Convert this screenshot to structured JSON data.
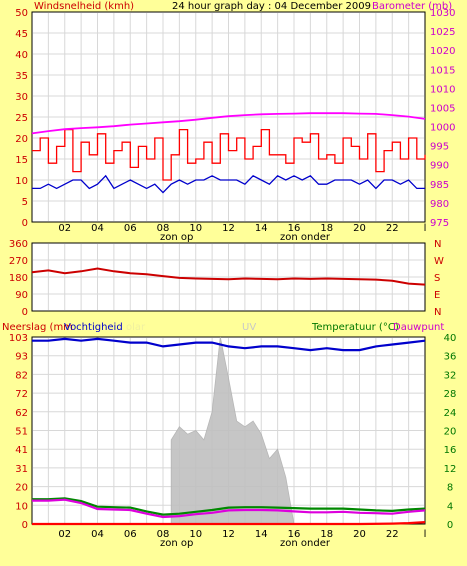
{
  "colors": {
    "page_bg": "#ffff99",
    "plot_bg": "#ffffff",
    "grid": "#d8d8d8",
    "wind_label": "#cc0000",
    "baro_label": "#cc00cc",
    "rain_label": "#cc0000",
    "humidity_label": "#0000cc",
    "solar_label": "#f0f0a0",
    "uv_label": "#d0d0d0",
    "temp_label": "#007700",
    "dew_label": "#cc00cc",
    "wind_gust": "#ff0000",
    "wind_avg": "#0000cc",
    "barometer": "#ff00ff",
    "direction": "#cc0000",
    "humidity": "#0000cc",
    "temperature": "#008800",
    "dewpoint": "#dd00dd",
    "rain": "#ff0000",
    "solar": "#c0c0c0",
    "axis_text": "#000000"
  },
  "header": {
    "title": "24 hour graph day : 04 December 2009"
  },
  "x_tick_labels": [
    "02",
    "04",
    "06",
    "08",
    "10",
    "12",
    "14",
    "16",
    "18",
    "20",
    "22",
    "l"
  ],
  "markers": {
    "sunrise": "zon op",
    "sunset": "zon onder"
  },
  "chart_data": [
    {
      "type": "line",
      "name": "wind_and_barometer",
      "left_axis_label": "Windsnelheid (kmh)",
      "right_axis_label": "Barometer (mb)",
      "ylim_left": [
        0,
        50
      ],
      "yticks_left": [
        "0",
        "5",
        "10",
        "15",
        "20",
        "25",
        "30",
        "35",
        "40",
        "45",
        "50"
      ],
      "ylim_right": [
        975,
        1030
      ],
      "yticks_right": [
        "975",
        "980",
        "985",
        "990",
        "995",
        "1000",
        "1005",
        "1010",
        "1015",
        "1020",
        "1025",
        "1030"
      ],
      "xlim_hours": [
        0,
        24
      ],
      "grid": true,
      "series": [
        {
          "key": "gust",
          "x": [
            0,
            0.5,
            1,
            1.5,
            2,
            2.5,
            3,
            3.5,
            4,
            4.5,
            5,
            5.5,
            6,
            6.5,
            7,
            7.5,
            8,
            8.5,
            9,
            9.5,
            10,
            10.5,
            11,
            11.5,
            12,
            12.5,
            13,
            13.5,
            14,
            14.5,
            15,
            15.5,
            16,
            16.5,
            17,
            17.5,
            18,
            18.5,
            19,
            19.5,
            20,
            20.5,
            21,
            21.5,
            22,
            22.5,
            23,
            23.5,
            24
          ],
          "values": [
            17,
            20,
            14,
            18,
            22,
            12,
            19,
            16,
            21,
            14,
            17,
            19,
            13,
            18,
            15,
            20,
            10,
            16,
            22,
            14,
            15,
            19,
            14,
            21,
            17,
            20,
            15,
            18,
            22,
            16,
            16,
            14,
            20,
            19,
            21,
            15,
            16,
            14,
            20,
            18,
            15,
            21,
            12,
            17,
            19,
            15,
            20,
            15,
            16
          ]
        },
        {
          "key": "average",
          "x": [
            0,
            0.5,
            1,
            1.5,
            2,
            2.5,
            3,
            3.5,
            4,
            4.5,
            5,
            5.5,
            6,
            6.5,
            7,
            7.5,
            8,
            8.5,
            9,
            9.5,
            10,
            10.5,
            11,
            11.5,
            12,
            12.5,
            13,
            13.5,
            14,
            14.5,
            15,
            15.5,
            16,
            16.5,
            17,
            17.5,
            18,
            18.5,
            19,
            19.5,
            20,
            20.5,
            21,
            21.5,
            22,
            22.5,
            23,
            23.5,
            24
          ],
          "values": [
            8,
            8,
            9,
            8,
            9,
            10,
            10,
            8,
            9,
            11,
            8,
            9,
            10,
            9,
            8,
            9,
            7,
            9,
            10,
            9,
            10,
            10,
            11,
            10,
            10,
            10,
            9,
            11,
            10,
            9,
            11,
            10,
            11,
            10,
            11,
            9,
            9,
            10,
            10,
            10,
            9,
            10,
            8,
            10,
            10,
            9,
            10,
            8,
            8
          ]
        },
        {
          "key": "barometer",
          "axis": "right",
          "x": [
            0,
            1,
            2,
            3,
            4,
            5,
            6,
            7,
            8,
            9,
            10,
            11,
            12,
            13,
            14,
            15,
            16,
            17,
            18,
            19,
            20,
            21,
            22,
            23,
            24
          ],
          "values": [
            998.2,
            998.8,
            999.3,
            999.6,
            999.8,
            1000.1,
            1000.5,
            1000.8,
            1001.1,
            1001.4,
            1001.8,
            1002.3,
            1002.7,
            1003.0,
            1003.2,
            1003.3,
            1003.4,
            1003.5,
            1003.5,
            1003.5,
            1003.4,
            1003.3,
            1003.0,
            1002.6,
            1002.0
          ]
        }
      ]
    },
    {
      "type": "line",
      "name": "wind_direction",
      "right_axis_label": "N W S E N",
      "right_letters": [
        "N",
        "W",
        "S",
        "E",
        "N"
      ],
      "ylim": [
        0,
        360
      ],
      "yticks": [
        "0",
        "90",
        "180",
        "270",
        "360"
      ],
      "xlim_hours": [
        0,
        24
      ],
      "series": [
        {
          "key": "direction",
          "x": [
            0,
            1,
            2,
            3,
            4,
            5,
            6,
            7,
            8,
            9,
            10,
            11,
            12,
            13,
            14,
            15,
            16,
            17,
            18,
            19,
            20,
            21,
            22,
            23,
            24
          ],
          "values": [
            205,
            215,
            200,
            210,
            225,
            210,
            200,
            195,
            185,
            175,
            172,
            170,
            168,
            172,
            170,
            168,
            172,
            170,
            172,
            170,
            168,
            166,
            160,
            145,
            140
          ]
        }
      ]
    },
    {
      "type": "line",
      "name": "rain_humidity_temperature",
      "left_axis_label": "Neerslag (mm",
      "left_axis_label2": "Vochtigheid",
      "solar_label": "olar",
      "uv_label": "UV",
      "right_axis_label": "Temperatuur (°C)",
      "right_axis_label2": "Dauwpunt",
      "ylim_left": [
        0,
        100
      ],
      "yticks_left": [
        "0",
        "10",
        "20",
        "31",
        "41",
        "51",
        "62",
        "72",
        "82",
        "93",
        "103"
      ],
      "ylim_right": [
        0,
        40
      ],
      "yticks_right": [
        "0",
        "4",
        "8",
        "12",
        "16",
        "20",
        "24",
        "28",
        "32",
        "36",
        "40"
      ],
      "xlim_hours": [
        0,
        24
      ],
      "series": [
        {
          "key": "humidity",
          "x": [
            0,
            1,
            2,
            3,
            4,
            5,
            6,
            7,
            8,
            9,
            10,
            11,
            12,
            13,
            14,
            15,
            16,
            17,
            18,
            19,
            20,
            21,
            22,
            23,
            24
          ],
          "values": [
            98,
            98,
            99,
            98,
            99,
            98,
            97,
            97,
            95,
            96,
            97,
            97,
            95,
            94,
            95,
            95,
            94,
            93,
            94,
            93,
            93,
            95,
            96,
            97,
            98
          ]
        },
        {
          "key": "temperature",
          "axis": "right",
          "x": [
            0,
            1,
            2,
            3,
            4,
            5,
            6,
            7,
            8,
            9,
            10,
            11,
            12,
            13,
            14,
            15,
            16,
            17,
            18,
            19,
            20,
            21,
            22,
            23,
            24
          ],
          "values": [
            5.3,
            5.3,
            5.5,
            4.9,
            3.7,
            3.6,
            3.5,
            2.7,
            2.0,
            2.2,
            2.6,
            3.0,
            3.5,
            3.6,
            3.6,
            3.5,
            3.4,
            3.3,
            3.3,
            3.3,
            3.1,
            2.9,
            2.8,
            3.1,
            3.3
          ]
        },
        {
          "key": "dewpoint",
          "axis": "right",
          "x": [
            0,
            1,
            2,
            3,
            4,
            5,
            6,
            7,
            8,
            9,
            10,
            11,
            12,
            13,
            14,
            15,
            16,
            17,
            18,
            19,
            20,
            21,
            22,
            23,
            24
          ],
          "values": [
            5.0,
            5.0,
            5.2,
            4.5,
            3.2,
            3.1,
            3.0,
            2.2,
            1.5,
            1.7,
            2.1,
            2.4,
            2.9,
            3.0,
            3.0,
            2.9,
            2.7,
            2.5,
            2.5,
            2.6,
            2.4,
            2.3,
            2.2,
            2.6,
            2.9
          ]
        },
        {
          "key": "rain",
          "x": [
            0,
            4,
            8,
            12,
            16,
            20,
            22,
            23,
            24
          ],
          "values": [
            0,
            0,
            0,
            0,
            0,
            0,
            0.2,
            0.5,
            1.0
          ]
        },
        {
          "key": "solar",
          "x": [
            8.5,
            9,
            9.5,
            10,
            10.5,
            11,
            11.5,
            12,
            12.5,
            13,
            13.5,
            14,
            14.5,
            15,
            15.5,
            16
          ],
          "values": [
            45,
            52,
            48,
            50,
            45,
            60,
            100,
            78,
            55,
            52,
            55,
            48,
            35,
            40,
            25,
            0
          ]
        }
      ]
    }
  ]
}
